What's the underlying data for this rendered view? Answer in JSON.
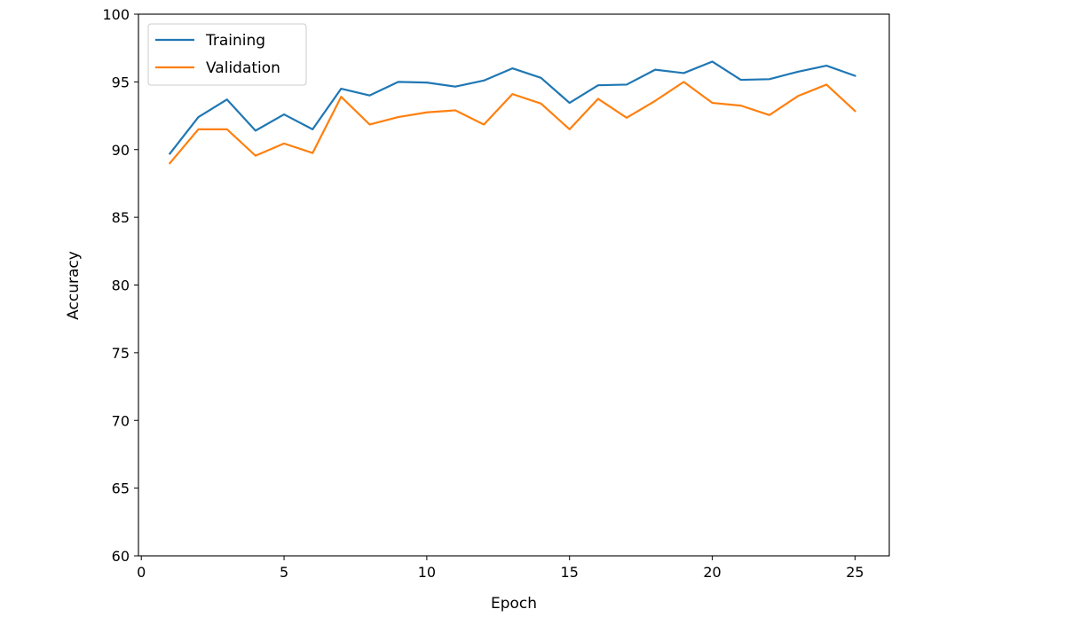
{
  "chart_data": {
    "type": "line",
    "title": "",
    "xlabel": "Epoch",
    "ylabel": "Accuracy",
    "xlim": [
      -0.1,
      26.2
    ],
    "ylim": [
      60,
      100
    ],
    "xticks": [
      0,
      5,
      10,
      15,
      20,
      25
    ],
    "yticks": [
      60,
      65,
      70,
      75,
      80,
      85,
      90,
      95,
      100
    ],
    "grid": false,
    "legend": "top-left",
    "x": [
      1,
      2,
      3,
      4,
      5,
      6,
      7,
      8,
      9,
      10,
      11,
      12,
      13,
      14,
      15,
      16,
      17,
      18,
      19,
      20,
      21,
      22,
      23,
      24,
      25
    ],
    "series": [
      {
        "name": "Training",
        "color": "#1f77b4",
        "values": [
          89.7,
          92.4,
          93.7,
          91.4,
          92.6,
          91.5,
          94.5,
          94.0,
          95.0,
          94.95,
          94.65,
          95.1,
          96.0,
          95.3,
          93.45,
          94.75,
          94.8,
          95.9,
          95.65,
          96.5,
          95.15,
          95.2,
          95.75,
          96.2,
          95.45
        ]
      },
      {
        "name": "Validation",
        "color": "#ff7f0e",
        "values": [
          89.0,
          91.5,
          91.5,
          89.55,
          90.45,
          89.75,
          93.9,
          91.85,
          92.4,
          92.75,
          92.9,
          91.85,
          94.1,
          93.4,
          91.5,
          93.75,
          92.35,
          93.6,
          95.0,
          93.45,
          93.25,
          92.55,
          93.95,
          94.8,
          92.85
        ]
      }
    ]
  }
}
